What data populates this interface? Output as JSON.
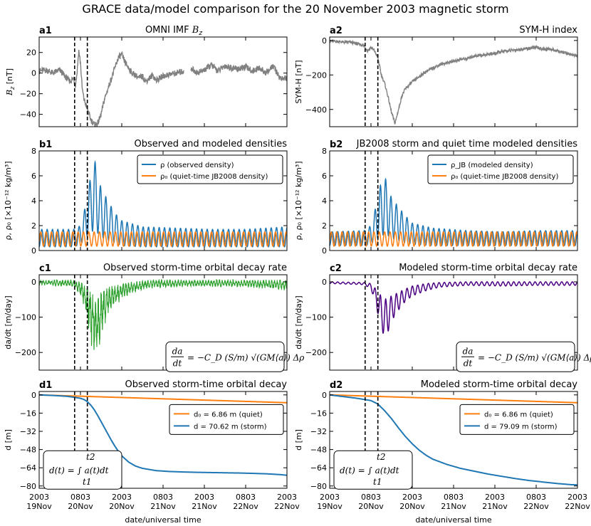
{
  "figure": {
    "suptitle": "GRACE data/model comparison for the 20 November 2003 magnetic storm",
    "xlabel": "date/universal time",
    "x_tick_labels": [
      [
        "2003",
        "19Nov"
      ],
      [
        "0803",
        "20Nov"
      ],
      [
        "2003",
        "20Nov"
      ],
      [
        "0803",
        "21Nov"
      ],
      [
        "2003",
        "21Nov"
      ],
      [
        "0803",
        "22Nov"
      ],
      [
        "2003",
        "22Nov"
      ]
    ],
    "x_tick_hours": [
      0,
      12,
      24,
      36,
      48,
      60,
      72
    ],
    "storm_markers_hours": [
      10.3,
      14.0
    ],
    "colors": {
      "gray": "#808080",
      "blue": "#1f77b4",
      "orange": "#ff7f0e",
      "green": "#2ca02c",
      "purple": "#4b0082"
    }
  },
  "chart_data": [
    {
      "id": "a1",
      "label": "a1",
      "title": "OMNI IMF B_z",
      "type": "line",
      "title_parts": [
        "OMNI IMF ",
        "B",
        "z"
      ],
      "ylabel": "B_z [nT]",
      "ylabel_parts": [
        "B",
        "z",
        " [nT]"
      ],
      "xlim": [
        0,
        72
      ],
      "ylim": [
        -52,
        35
      ],
      "yticks": [
        20,
        0,
        -20,
        -40
      ],
      "series": [
        {
          "name": "Bz",
          "color": "#808080",
          "gaps": [
            [
              42,
              44
            ]
          ],
          "x": [
            0,
            2,
            4,
            6,
            8,
            9,
            10,
            10.5,
            11,
            11.5,
            12,
            12.5,
            13,
            14,
            15,
            16,
            17,
            18,
            19,
            20,
            21,
            22,
            23,
            24,
            25,
            26,
            27,
            28,
            29,
            30,
            31,
            32,
            33,
            34,
            36,
            38,
            40,
            42,
            44,
            46,
            48,
            50,
            52,
            54,
            56,
            58,
            60,
            62,
            64,
            66,
            68,
            70,
            72
          ],
          "y": [
            2,
            3,
            0,
            3,
            -5,
            -8,
            -5,
            -12,
            0,
            22,
            10,
            -15,
            -25,
            -35,
            -45,
            -50,
            -49,
            -40,
            -25,
            -15,
            -5,
            5,
            15,
            18,
            10,
            5,
            0,
            -2,
            -5,
            -3,
            -8,
            -5,
            -2,
            -7,
            -3,
            -1,
            0,
            2,
            5,
            0,
            3,
            8,
            2,
            7,
            5,
            4,
            6,
            2,
            5,
            0,
            7,
            -5,
            -5
          ]
        }
      ]
    },
    {
      "id": "a2",
      "label": "a2",
      "title": "SYM-H index",
      "type": "line",
      "ylabel": "SYM-H [nT]",
      "xlim": [
        0,
        72
      ],
      "ylim": [
        -500,
        20
      ],
      "yticks": [
        0,
        -200,
        -400
      ],
      "series": [
        {
          "name": "SYM-H",
          "color": "#808080",
          "x": [
            0,
            2,
            4,
            6,
            8,
            10,
            11,
            12,
            13,
            14,
            15,
            16,
            17,
            18,
            19,
            20,
            21,
            22,
            23,
            24,
            26,
            28,
            30,
            32,
            34,
            36,
            38,
            40,
            42,
            44,
            46,
            48,
            50,
            52,
            54,
            56,
            58,
            60,
            62,
            64,
            66,
            68,
            70,
            72
          ],
          "y": [
            -5,
            -5,
            -10,
            -10,
            -20,
            -30,
            -60,
            -40,
            -60,
            -100,
            -200,
            -250,
            -330,
            -420,
            -480,
            -400,
            -320,
            -280,
            -260,
            -240,
            -210,
            -180,
            -160,
            -140,
            -130,
            -120,
            -110,
            -105,
            -90,
            -85,
            -80,
            -75,
            -65,
            -60,
            -55,
            -50,
            -45,
            -40,
            -50,
            -50,
            -60,
            -70,
            -80,
            -90
          ]
        }
      ]
    },
    {
      "id": "b1",
      "label": "b1",
      "title": "Observed and modeled densities",
      "type": "line",
      "ylabel": "ρ, ρ₀ [×10⁻¹² kg/m³]",
      "xlim": [
        0,
        72
      ],
      "ylim": [
        0,
        8
      ],
      "yticks": [
        0,
        2,
        4,
        6,
        8
      ],
      "legend_position": "top-right",
      "series": [
        {
          "name": "ρ (observed density)",
          "color": "#1f77b4",
          "env_x": [
            0,
            10,
            12,
            13,
            14,
            15,
            16,
            17,
            18,
            20,
            22,
            24,
            30,
            40,
            50,
            60,
            72
          ],
          "env_hi": [
            1.7,
            1.7,
            2.0,
            3.0,
            4.5,
            6.0,
            7.5,
            6.0,
            5.0,
            4.0,
            3.0,
            2.4,
            1.9,
            1.8,
            1.7,
            1.7,
            1.9
          ],
          "env_lo": [
            0.3,
            0.3,
            0.5,
            0.8,
            1.2,
            1.5,
            1.6,
            1.4,
            1.1,
            0.8,
            0.6,
            0.4,
            0.3,
            0.3,
            0.3,
            0.3,
            0.3
          ],
          "orbit_period_hours": 1.55
        },
        {
          "name": "ρ₀ (quiet-time JB2008 density)",
          "color": "#ff7f0e",
          "low": 0.35,
          "high": 1.5,
          "orbit_period_hours": 1.55
        }
      ]
    },
    {
      "id": "b2",
      "label": "b2",
      "title": "JB2008 storm and quiet time modeled densities",
      "type": "line",
      "ylabel": "ρ, ρ₀ [×10⁻¹² kg/m³]",
      "xlim": [
        0,
        72
      ],
      "ylim": [
        0,
        8
      ],
      "yticks": [
        0,
        2,
        4,
        6,
        8
      ],
      "legend_position": "top-right",
      "series": [
        {
          "name": "ρ_JB (modeled density)",
          "color": "#1f77b4",
          "env_x": [
            0,
            10,
            12,
            13,
            14,
            15,
            16,
            17,
            18,
            20,
            22,
            24,
            30,
            40,
            50,
            60,
            72
          ],
          "env_hi": [
            1.5,
            1.6,
            2.0,
            3.0,
            4.5,
            5.5,
            6.0,
            5.0,
            4.2,
            3.5,
            2.8,
            2.2,
            1.8,
            1.6,
            1.5,
            1.6,
            1.6
          ],
          "env_lo": [
            0.4,
            0.4,
            0.5,
            0.8,
            1.0,
            1.2,
            1.3,
            1.2,
            1.0,
            0.8,
            0.6,
            0.5,
            0.4,
            0.4,
            0.4,
            0.4,
            0.4
          ],
          "orbit_period_hours": 1.55
        },
        {
          "name": "ρ₀ (quiet-time JB2008 density)",
          "color": "#ff7f0e",
          "low": 0.35,
          "high": 1.5,
          "orbit_period_hours": 1.55
        }
      ]
    },
    {
      "id": "c1",
      "label": "c1",
      "title": "Observed storm-time orbital decay rate",
      "type": "line",
      "ylabel": "da/dt [m/day]",
      "xlim": [
        0,
        72
      ],
      "ylim": [
        -250,
        20
      ],
      "yticks": [
        0,
        -100,
        -200
      ],
      "equation": {
        "lhs": "da/dt",
        "rhs": "= −C_D (S/m) √(GM⟨a⟩) Δρ"
      },
      "series": [
        {
          "name": "da/dt observed",
          "color": "#2ca02c",
          "env_x": [
            0,
            10,
            12,
            13,
            14,
            15,
            16,
            17,
            18,
            19,
            20,
            22,
            24,
            28,
            32,
            40,
            50,
            60,
            72
          ],
          "env_hi": [
            5,
            5,
            0,
            -5,
            -20,
            -30,
            -40,
            -35,
            -30,
            -25,
            -15,
            -10,
            -5,
            0,
            5,
            5,
            5,
            5,
            5
          ],
          "env_lo": [
            -10,
            -15,
            -40,
            -70,
            -120,
            -170,
            -230,
            -200,
            -170,
            -130,
            -100,
            -70,
            -50,
            -30,
            -20,
            -15,
            -15,
            -15,
            -25
          ],
          "orbit_period_hours": 0.8
        }
      ]
    },
    {
      "id": "c2",
      "label": "c2",
      "title": "Modeled storm-time orbital decay rate",
      "type": "line",
      "ylabel": "da/dt [m/day]",
      "xlim": [
        0,
        72
      ],
      "ylim": [
        -250,
        20
      ],
      "yticks": [
        0,
        -100,
        -200
      ],
      "equation": {
        "lhs": "da/dt",
        "rhs": "= −C_D (S/m) √(GM⟨a⟩) Δρ"
      },
      "series": [
        {
          "name": "da/dt modeled",
          "color": "#4b0082",
          "env_x": [
            0,
            10,
            12,
            13,
            14,
            15,
            16,
            17,
            18,
            20,
            22,
            24,
            28,
            32,
            40,
            50,
            60,
            72
          ],
          "env_hi": [
            0,
            -2,
            -5,
            -15,
            -30,
            -40,
            -50,
            -45,
            -40,
            -30,
            -20,
            -12,
            -5,
            -2,
            0,
            0,
            0,
            0
          ],
          "env_lo": [
            -5,
            -8,
            -20,
            -50,
            -90,
            -130,
            -160,
            -140,
            -110,
            -80,
            -55,
            -40,
            -25,
            -15,
            -10,
            -12,
            -10,
            -10
          ],
          "orbit_period_hours": 1.55
        }
      ]
    },
    {
      "id": "d1",
      "label": "d1",
      "title": "Observed storm-time orbital decay",
      "type": "line",
      "ylabel": "d [m]",
      "xlim": [
        0,
        72
      ],
      "ylim": [
        -82,
        3
      ],
      "yticks": [
        0,
        -16,
        -32,
        -48,
        -64,
        -80
      ],
      "legend_position": "center-right",
      "equation": {
        "text": "d(t) = ∫ a(t)dt",
        "lower": "t1",
        "upper": "t2"
      },
      "series": [
        {
          "name": "d₀ = 6.86 m (quiet)",
          "color": "#ff7f0e",
          "x": [
            0,
            72
          ],
          "y": [
            0,
            -6.86
          ]
        },
        {
          "name": "d = 70.62 m (storm)",
          "color": "#1f77b4",
          "x": [
            0,
            4,
            8,
            10,
            12,
            13,
            14,
            15,
            16,
            17,
            18,
            19,
            20,
            21,
            22,
            23,
            24,
            26,
            28,
            30,
            34,
            38,
            42,
            46,
            50,
            54,
            58,
            62,
            66,
            70,
            72
          ],
          "y": [
            0,
            -0.5,
            -1.2,
            -2,
            -3,
            -4,
            -6,
            -9,
            -13,
            -18,
            -23.5,
            -29,
            -34.5,
            -40,
            -45,
            -49.5,
            -53.5,
            -59,
            -62.5,
            -64.5,
            -66.5,
            -67.3,
            -67.7,
            -68,
            -68.2,
            -68.4,
            -68.6,
            -68.9,
            -69.3,
            -70,
            -70.62
          ]
        }
      ]
    },
    {
      "id": "d2",
      "label": "d2",
      "title": "Modeled storm-time orbital decay",
      "type": "line",
      "ylabel": "d [m]",
      "xlim": [
        0,
        72
      ],
      "ylim": [
        -82,
        3
      ],
      "yticks": [
        0,
        -16,
        -32,
        -48,
        -64,
        -80
      ],
      "legend_position": "center-right",
      "equation": {
        "text": "d(t) = ∫ a(t)dt",
        "lower": "t1",
        "upper": "t2"
      },
      "series": [
        {
          "name": "d₀ = 6.86 m (quiet)",
          "color": "#ff7f0e",
          "x": [
            0,
            72
          ],
          "y": [
            0,
            -6.86
          ]
        },
        {
          "name": "d = 79.09 m (storm)",
          "color": "#1f77b4",
          "x": [
            0,
            4,
            8,
            10,
            12,
            14,
            16,
            18,
            20,
            22,
            24,
            26,
            28,
            30,
            34,
            38,
            42,
            46,
            50,
            54,
            58,
            62,
            66,
            70,
            72
          ],
          "y": [
            0,
            -1.5,
            -3,
            -4,
            -5,
            -8,
            -14,
            -21,
            -29,
            -36.5,
            -43,
            -48.5,
            -53,
            -56.5,
            -61,
            -64.5,
            -67,
            -69.5,
            -71.5,
            -73.5,
            -75.2,
            -76.5,
            -77.8,
            -78.8,
            -79.09
          ]
        }
      ]
    }
  ]
}
